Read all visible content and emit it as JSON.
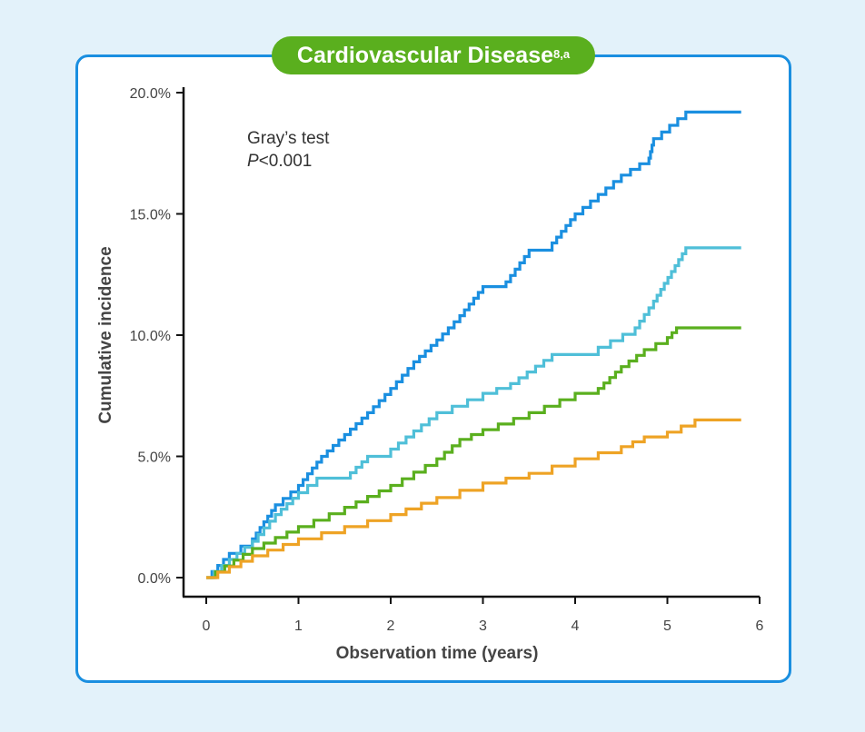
{
  "title": {
    "text": "Cardiovascular Disease",
    "superscript": "8,a"
  },
  "colors": {
    "background": "#e3f2fa",
    "frame": "#1a8fe0",
    "title_pill": "#5aaf1e"
  },
  "chart_data": {
    "type": "line",
    "step": true,
    "xlabel": "Observation time (years)",
    "ylabel": "Cumulative incidence",
    "xlim": [
      0,
      6
    ],
    "ylim": [
      0,
      20
    ],
    "xticks": [
      "0",
      "1",
      "2",
      "3",
      "4",
      "5",
      "6"
    ],
    "yticks": [
      "0.0%",
      "5.0%",
      "10.0%",
      "15.0%",
      "20.0%"
    ],
    "grid": false,
    "annotation": {
      "line1": "Gray’s test",
      "p_label": "P",
      "p_value": "<0.001"
    },
    "series": [
      {
        "color": "#1a8fe0",
        "x": [
          0,
          0.25,
          0.5,
          0.75,
          1.0,
          1.25,
          1.5,
          1.75,
          2.0,
          2.25,
          2.5,
          2.75,
          3.0,
          3.25,
          3.5,
          3.75,
          4.0,
          4.25,
          4.5,
          4.8,
          4.85,
          5.2,
          5.8
        ],
        "y": [
          0,
          1.0,
          1.6,
          3.0,
          3.8,
          5.0,
          5.9,
          6.8,
          7.8,
          8.9,
          9.8,
          10.8,
          12.0,
          12.2,
          13.5,
          13.8,
          15.0,
          15.8,
          16.6,
          17.3,
          18.1,
          19.2,
          19.2
        ]
      },
      {
        "color": "#4fbfd8",
        "x": [
          0,
          0.5,
          0.75,
          1.0,
          1.2,
          1.5,
          1.75,
          2.0,
          2.5,
          3.0,
          3.3,
          3.75,
          4.25,
          4.65,
          4.85,
          5.2,
          5.8
        ],
        "y": [
          0,
          1.5,
          2.6,
          3.5,
          4.1,
          4.1,
          5.0,
          5.3,
          6.8,
          7.6,
          8.0,
          9.2,
          9.5,
          10.3,
          11.4,
          13.6,
          13.6
        ]
      },
      {
        "color": "#5aaf1e",
        "x": [
          0,
          0.5,
          1.0,
          1.5,
          2.0,
          2.5,
          2.75,
          3.0,
          3.5,
          4.0,
          4.25,
          4.5,
          4.75,
          5.0,
          5.1,
          5.8
        ],
        "y": [
          0,
          1.2,
          2.1,
          2.9,
          3.8,
          4.9,
          5.7,
          6.1,
          6.8,
          7.6,
          7.8,
          8.7,
          9.4,
          9.9,
          10.3,
          10.3
        ]
      },
      {
        "color": "#eea325",
        "x": [
          0,
          0.5,
          1.0,
          1.5,
          2.0,
          2.5,
          3.0,
          3.5,
          4.0,
          4.5,
          4.75,
          5.0,
          5.3,
          5.8
        ],
        "y": [
          0,
          0.9,
          1.6,
          2.1,
          2.6,
          3.3,
          3.9,
          4.3,
          4.9,
          5.4,
          5.8,
          6.0,
          6.5,
          6.5
        ]
      }
    ]
  }
}
